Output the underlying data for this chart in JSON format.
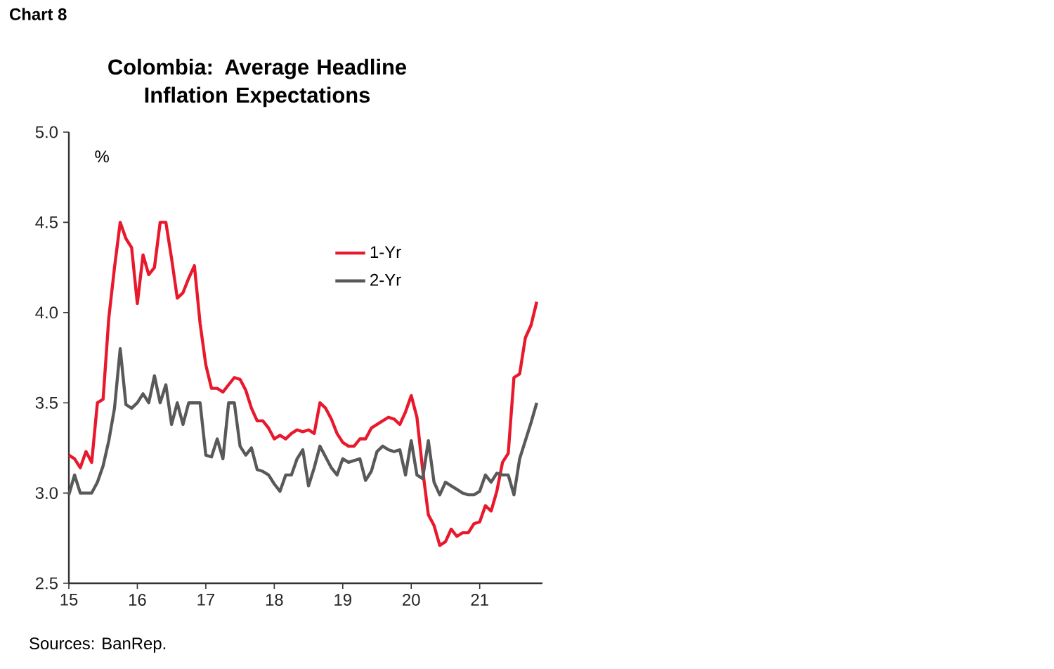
{
  "chart_data": {
    "type": "line",
    "title": "Colombia: Average Headline Inflation Expectations",
    "ylabel": "%",
    "annotations": [
      "Chart 8",
      "Sources: BanRep."
    ],
    "x": [
      "2015-01",
      "2015-02",
      "2015-03",
      "2015-04",
      "2015-05",
      "2015-06",
      "2015-07",
      "2015-08",
      "2015-09",
      "2015-10",
      "2015-11",
      "2015-12",
      "2016-01",
      "2016-02",
      "2016-03",
      "2016-04",
      "2016-05",
      "2016-06",
      "2016-07",
      "2016-08",
      "2016-09",
      "2016-10",
      "2016-11",
      "2016-12",
      "2017-01",
      "2017-02",
      "2017-03",
      "2017-04",
      "2017-05",
      "2017-06",
      "2017-07",
      "2017-08",
      "2017-09",
      "2017-10",
      "2017-11",
      "2017-12",
      "2018-01",
      "2018-02",
      "2018-03",
      "2018-04",
      "2018-05",
      "2018-06",
      "2018-07",
      "2018-08",
      "2018-09",
      "2018-10",
      "2018-11",
      "2018-12",
      "2019-01",
      "2019-02",
      "2019-03",
      "2019-04",
      "2019-05",
      "2019-06",
      "2019-07",
      "2019-08",
      "2019-09",
      "2019-10",
      "2019-11",
      "2019-12",
      "2020-01",
      "2020-02",
      "2020-03",
      "2020-04",
      "2020-05",
      "2020-06",
      "2020-07",
      "2020-08",
      "2020-09",
      "2020-10",
      "2020-11",
      "2020-12",
      "2021-01",
      "2021-02",
      "2021-03",
      "2021-04",
      "2021-05",
      "2021-06",
      "2021-07",
      "2021-08",
      "2021-09",
      "2021-10",
      "2021-11"
    ],
    "series": [
      {
        "name": "1-Yr",
        "color": "#e8192c",
        "values": [
          3.21,
          3.19,
          3.14,
          3.23,
          3.17,
          3.5,
          3.52,
          3.97,
          4.25,
          4.5,
          4.41,
          4.36,
          4.05,
          4.32,
          4.21,
          4.25,
          4.5,
          4.5,
          4.3,
          4.08,
          4.11,
          4.19,
          4.26,
          3.94,
          3.71,
          3.58,
          3.58,
          3.56,
          3.6,
          3.64,
          3.63,
          3.57,
          3.47,
          3.4,
          3.4,
          3.36,
          3.3,
          3.32,
          3.3,
          3.33,
          3.35,
          3.34,
          3.35,
          3.33,
          3.5,
          3.47,
          3.41,
          3.33,
          3.28,
          3.26,
          3.26,
          3.3,
          3.3,
          3.36,
          3.38,
          3.4,
          3.42,
          3.41,
          3.38,
          3.45,
          3.54,
          3.42,
          3.13,
          2.88,
          2.82,
          2.71,
          2.73,
          2.8,
          2.76,
          2.78,
          2.78,
          2.83,
          2.84,
          2.93,
          2.9,
          3.01,
          3.17,
          3.22,
          3.64,
          3.66,
          3.86,
          3.93,
          4.06
        ]
      },
      {
        "name": "2-Yr",
        "color": "#595959",
        "values": [
          2.99,
          3.1,
          3.0,
          3.0,
          3.0,
          3.06,
          3.15,
          3.29,
          3.47,
          3.8,
          3.49,
          3.47,
          3.5,
          3.55,
          3.5,
          3.65,
          3.5,
          3.6,
          3.38,
          3.5,
          3.38,
          3.5,
          3.5,
          3.5,
          3.21,
          3.2,
          3.3,
          3.19,
          3.5,
          3.5,
          3.26,
          3.21,
          3.25,
          3.13,
          3.12,
          3.1,
          3.05,
          3.01,
          3.1,
          3.1,
          3.19,
          3.24,
          3.04,
          3.14,
          3.26,
          3.2,
          3.14,
          3.1,
          3.19,
          3.17,
          3.18,
          3.19,
          3.07,
          3.12,
          3.23,
          3.26,
          3.24,
          3.23,
          3.24,
          3.1,
          3.29,
          3.1,
          3.08,
          3.29,
          3.06,
          2.99,
          3.06,
          3.04,
          3.02,
          3.0,
          2.99,
          2.99,
          3.01,
          3.1,
          3.06,
          3.11,
          3.1,
          3.1,
          2.99,
          3.19,
          3.29,
          3.39,
          3.5
        ]
      }
    ],
    "xlim": [
      "2015-01",
      "2021-12"
    ],
    "xticks": [
      {
        "value": "2015-01",
        "label": "15"
      },
      {
        "value": "2016-01",
        "label": "16"
      },
      {
        "value": "2017-01",
        "label": "17"
      },
      {
        "value": "2018-01",
        "label": "18"
      },
      {
        "value": "2019-01",
        "label": "19"
      },
      {
        "value": "2020-01",
        "label": "20"
      },
      {
        "value": "2021-01",
        "label": "21"
      }
    ],
    "ylim": [
      2.5,
      5.0
    ],
    "yticks": [
      {
        "value": 2.5,
        "label": "2.5"
      },
      {
        "value": 3.0,
        "label": "3.0"
      },
      {
        "value": 3.5,
        "label": "3.5"
      },
      {
        "value": 4.0,
        "label": "4.0"
      },
      {
        "value": 4.5,
        "label": "4.5"
      },
      {
        "value": 5.0,
        "label": "5.0"
      }
    ],
    "legend": "top right",
    "marker": "none",
    "line_style": "solid"
  }
}
